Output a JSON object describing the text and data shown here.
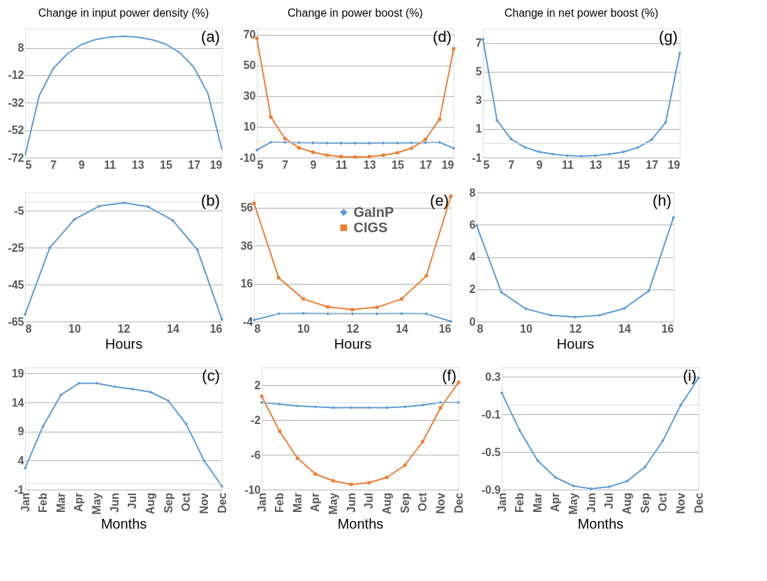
{
  "chart_data": [
    {
      "type": "line",
      "title": "Change in input power density (%)",
      "x": [
        5,
        6,
        7,
        8,
        9,
        10,
        11,
        12,
        13,
        14,
        15,
        16,
        17,
        18,
        19
      ],
      "xlim": [
        5,
        19
      ],
      "xticks": [
        5,
        7,
        9,
        11,
        13,
        15,
        17,
        19
      ],
      "ylim": [
        -72,
        22
      ],
      "yticks": [
        -72,
        -52,
        -32,
        -12,
        8
      ],
      "grid": "y",
      "marker": "none",
      "annotations": [
        "(a)"
      ],
      "series": [
        {
          "color": "#5b9bd5",
          "values": [
            -70.2,
            -26.9,
            -7.1,
            3.7,
            10.3,
            14.0,
            15.8,
            16.4,
            15.8,
            14.0,
            10.7,
            4.4,
            -6.1,
            -25.1,
            -66.1
          ]
        }
      ]
    },
    {
      "type": "line",
      "title": "Change in power boost (%)",
      "x": [
        5,
        6,
        7,
        8,
        9,
        10,
        11,
        12,
        13,
        14,
        15,
        16,
        17,
        18,
        19
      ],
      "xlim": [
        5,
        19
      ],
      "xticks": [
        5,
        7,
        9,
        11,
        13,
        15,
        17,
        19
      ],
      "ylim": [
        -10,
        74
      ],
      "yticks": [
        -10,
        10,
        30,
        50,
        70
      ],
      "grid": "y",
      "marker": "diamond",
      "annotations": [
        "(d)"
      ],
      "ref_lines": [
        {
          "axis": "y",
          "value": 0,
          "color": "#d9d9d9"
        }
      ],
      "series": [
        {
          "color": "#5b9bd5",
          "marker": "diamond",
          "values": [
            -5.1,
            0.1,
            0,
            -0.2,
            -0.4,
            -0.5,
            -0.6,
            -0.6,
            -0.6,
            -0.5,
            -0.5,
            -0.4,
            -0.2,
            0,
            -3.9
          ]
        },
        {
          "color": "#ed7d31",
          "marker": "square",
          "values": [
            67.7,
            16.4,
            2.4,
            -3.6,
            -6.5,
            -8.4,
            -9.3,
            -9.6,
            -9.3,
            -8.4,
            -6.8,
            -3.9,
            1.9,
            14.9,
            60.9
          ]
        }
      ]
    },
    {
      "type": "line",
      "title": "Change in net power boost (%)",
      "x": [
        5,
        6,
        7,
        8,
        9,
        10,
        11,
        12,
        13,
        14,
        15,
        16,
        17,
        18,
        19
      ],
      "xlim": [
        5,
        19
      ],
      "xticks": [
        5,
        7,
        9,
        11,
        13,
        15,
        17,
        19
      ],
      "ylim": [
        -1,
        8
      ],
      "yticks": [
        -1,
        1,
        3,
        5,
        7
      ],
      "grid": "y",
      "marker": "diamond",
      "annotations": [
        "(g)"
      ],
      "ref_lines": [
        {
          "axis": "y",
          "value": 0,
          "color": "#d9d9d9"
        }
      ],
      "series": [
        {
          "color": "#5b9bd5",
          "values": [
            7.26,
            1.6,
            0.3,
            -0.29,
            -0.6,
            -0.76,
            -0.86,
            -0.9,
            -0.86,
            -0.76,
            -0.6,
            -0.3,
            0.25,
            1.46,
            6.3
          ]
        }
      ]
    },
    {
      "type": "line",
      "xlabel": "Hours",
      "x": [
        8,
        9,
        10,
        11,
        12,
        13,
        14,
        15,
        16
      ],
      "xlim": [
        8,
        16
      ],
      "xticks": [
        8,
        10,
        12,
        14,
        16
      ],
      "ylim": [
        -65,
        5
      ],
      "yticks": [
        -65,
        -45,
        -25,
        -5
      ],
      "grid": "y",
      "marker": "diamond",
      "annotations": [
        "(b)"
      ],
      "ref_lines": [
        {
          "axis": "y",
          "value": 0,
          "color": "#d9d9d9"
        }
      ],
      "series": [
        {
          "color": "#5b9bd5",
          "values": [
            -61.1,
            -25,
            -9.6,
            -2.4,
            -0.6,
            -2.7,
            -10.1,
            -26,
            -63.9
          ]
        }
      ]
    },
    {
      "type": "line",
      "xlabel": "Hours",
      "x": [
        8,
        9,
        10,
        11,
        12,
        13,
        14,
        15,
        16
      ],
      "xlim": [
        8,
        16
      ],
      "xticks": [
        8,
        10,
        12,
        14,
        16
      ],
      "ylim": [
        -4,
        64
      ],
      "yticks": [
        -4,
        16,
        36,
        56
      ],
      "grid": "y",
      "marker": "diamond",
      "legend": "top",
      "annotations": [
        "(e)"
      ],
      "ref_lines": [
        {
          "axis": "y",
          "value": 0,
          "color": "#d9d9d9"
        }
      ],
      "series": [
        {
          "name": "GaInP",
          "color": "#5b9bd5",
          "marker": "diamond",
          "values": [
            -3.2,
            0.1,
            0.3,
            0.1,
            0.1,
            0.1,
            0.2,
            0.1,
            -3.9
          ]
        },
        {
          "name": "CIGS",
          "color": "#ed7d31",
          "marker": "square",
          "values": [
            58.3,
            19.1,
            7.9,
            3.7,
            2.3,
            3.5,
            7.9,
            20.0,
            62.0
          ]
        }
      ]
    },
    {
      "type": "line",
      "xlabel": "Hours",
      "x": [
        8,
        9,
        10,
        11,
        12,
        13,
        14,
        15,
        16
      ],
      "xlim": [
        8,
        16
      ],
      "xticks": [
        8,
        10,
        12,
        14,
        16
      ],
      "ylim": [
        0,
        8
      ],
      "yticks": [
        0,
        2,
        4,
        6,
        8
      ],
      "grid": "y",
      "marker": "diamond",
      "annotations": [
        "(h)"
      ],
      "series": [
        {
          "color": "#5b9bd5",
          "values": [
            5.95,
            1.82,
            0.79,
            0.39,
            0.28,
            0.39,
            0.81,
            1.91,
            6.45
          ]
        }
      ]
    },
    {
      "type": "line",
      "xlabel": "Months",
      "categories": [
        "Jan",
        "Feb",
        "Mar",
        "Apr",
        "May",
        "Jun",
        "Jul",
        "Aug",
        "Sep",
        "Oct",
        "Nov",
        "Dec"
      ],
      "ylim": [
        -1,
        20
      ],
      "yticks": [
        -1,
        4,
        9,
        14,
        19
      ],
      "grid": "y",
      "marker": "diamond",
      "annotations": [
        "(c)"
      ],
      "ref_lines": [
        {
          "axis": "y",
          "value": 0,
          "color": "#d9d9d9"
        }
      ],
      "series": [
        {
          "color": "#5b9bd5",
          "values": [
            2.7,
            9.9,
            15.3,
            17.3,
            17.3,
            16.7,
            16.3,
            15.8,
            14.3,
            10.3,
            4.0,
            -0.4
          ]
        }
      ]
    },
    {
      "type": "line",
      "xlabel": "Months",
      "categories": [
        "Jan",
        "Feb",
        "Mar",
        "Apr",
        "May",
        "Jun",
        "Jul",
        "Aug",
        "Sep",
        "Oct",
        "Nov",
        "Dec"
      ],
      "ylim": [
        -10,
        4
      ],
      "yticks": [
        -10,
        -6,
        -2,
        2
      ],
      "grid": "y",
      "marker": "diamond",
      "annotations": [
        "(f)"
      ],
      "ref_lines": [
        {
          "axis": "y",
          "value": 0,
          "color": "#d9d9d9"
        }
      ],
      "series": [
        {
          "color": "#5b9bd5",
          "marker": "diamond",
          "values": [
            0.0,
            -0.2,
            -0.4,
            -0.5,
            -0.6,
            -0.6,
            -0.6,
            -0.6,
            -0.5,
            -0.3,
            0.0,
            0.0
          ]
        },
        {
          "color": "#ed7d31",
          "marker": "square",
          "values": [
            0.7,
            -3.3,
            -6.4,
            -8.2,
            -9.0,
            -9.4,
            -9.2,
            -8.6,
            -7.2,
            -4.5,
            -0.6,
            2.3
          ]
        }
      ]
    },
    {
      "type": "line",
      "xlabel": "Months",
      "categories": [
        "Jan",
        "Feb",
        "Mar",
        "Apr",
        "May",
        "Jun",
        "Jul",
        "Aug",
        "Sep",
        "Oct",
        "Nov",
        "Dec"
      ],
      "ylim": [
        -0.9,
        0.4
      ],
      "yticks": [
        -0.9,
        -0.5,
        -0.1,
        0.3
      ],
      "grid": "y",
      "marker": "diamond",
      "annotations": [
        "(i)"
      ],
      "ref_lines": [
        {
          "axis": "y",
          "value": 0,
          "color": "#d9d9d9"
        }
      ],
      "series": [
        {
          "color": "#5b9bd5",
          "values": [
            0.13,
            -0.27,
            -0.59,
            -0.77,
            -0.86,
            -0.89,
            -0.87,
            -0.81,
            -0.66,
            -0.38,
            0.0,
            0.29
          ]
        }
      ]
    }
  ]
}
